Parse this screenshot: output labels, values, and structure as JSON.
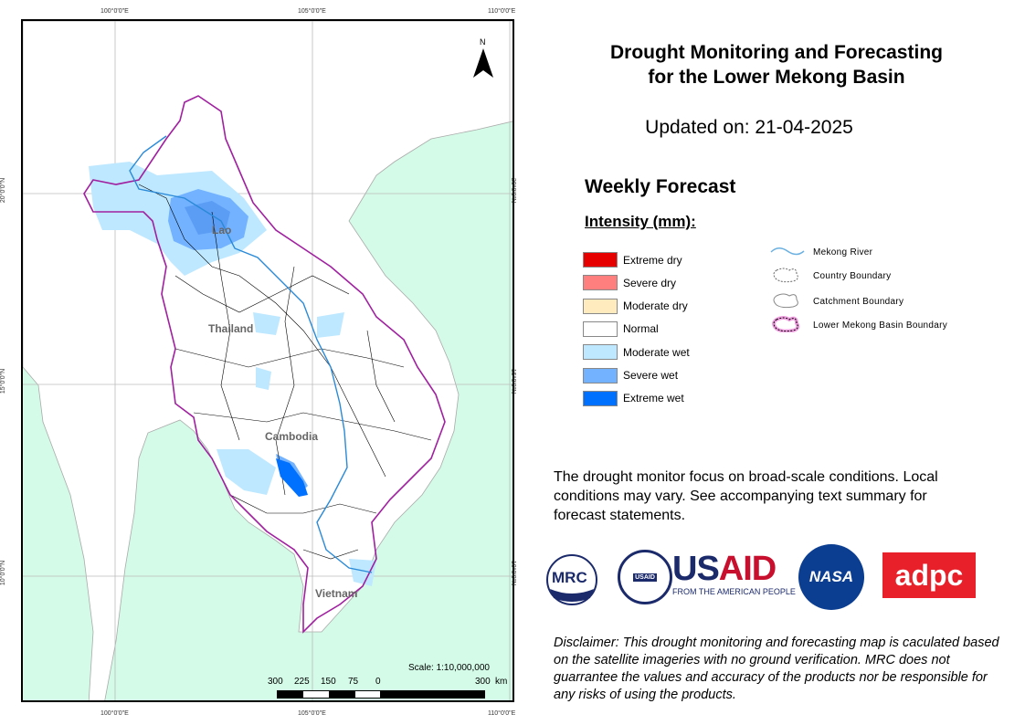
{
  "header": {
    "title_line1": "Drought Monitoring and Forecasting",
    "title_line2": "for the Lower Mekong Basin",
    "updated": "Updated on: 21-04-2025"
  },
  "forecast": {
    "heading": "Weekly Forecast",
    "intensity_label": "Intensity (mm):",
    "legend": [
      {
        "label": "Extreme dry",
        "color": "#e60000"
      },
      {
        "label": "Severe dry",
        "color": "#ff7f7f"
      },
      {
        "label": "Moderate dry",
        "color": "#ffebbe"
      },
      {
        "label": "Normal",
        "color": "#ffffff"
      },
      {
        "label": "Moderate wet",
        "color": "#bee8ff"
      },
      {
        "label": "Severe wet",
        "color": "#73b2ff"
      },
      {
        "label": "Extreme wet",
        "color": "#0070ff"
      }
    ],
    "layers": [
      {
        "label": "Mekong River",
        "icon": "river-line-icon"
      },
      {
        "label": "Country Boundary",
        "icon": "country-boundary-icon"
      },
      {
        "label": "Catchment Boundary",
        "icon": "catchment-boundary-icon"
      },
      {
        "label": "Lower Mekong Basin Boundary",
        "icon": "basin-boundary-icon"
      }
    ]
  },
  "map": {
    "lon_ticks": [
      "100°0'0\"E",
      "105°0'0\"E",
      "110°0'0\"E"
    ],
    "lat_ticks": [
      "20°0'0\"N",
      "15°0'0\"N",
      "10°0'0\"N"
    ],
    "north": "N",
    "countries": [
      "Lao",
      "Thailand",
      "Cambodia",
      "Vietnam"
    ],
    "scale_text": "Scale: 1:10,000,000",
    "scale_ticks": [
      "300",
      "225",
      "150",
      "75",
      "0",
      "300"
    ],
    "scale_unit": "km",
    "sea_color": "#d3fbe7",
    "basin_color": "#a020a0"
  },
  "note": "The drought monitor focus on broad-scale conditions. Local conditions may vary. See accompanying text summary for forecast statements.",
  "logos": {
    "mrc": "MRC",
    "mrc_ring": "MEKONG RIVER COMMISSION FOR SUSTAINABLE DEVELOPMENT",
    "usaid_seal": "USAID",
    "usaid": "USAID",
    "usaid_sub": "FROM THE AMERICAN PEOPLE",
    "nasa": "NASA",
    "adpc": "adpc"
  },
  "disclaimer": "Disclaimer: This drought monitoring and forecasting map is caculated based on the satellite imageries with no ground verification. MRC does not guarrantee the values and accuracy of the products nor be responsible for any risks of using the products."
}
